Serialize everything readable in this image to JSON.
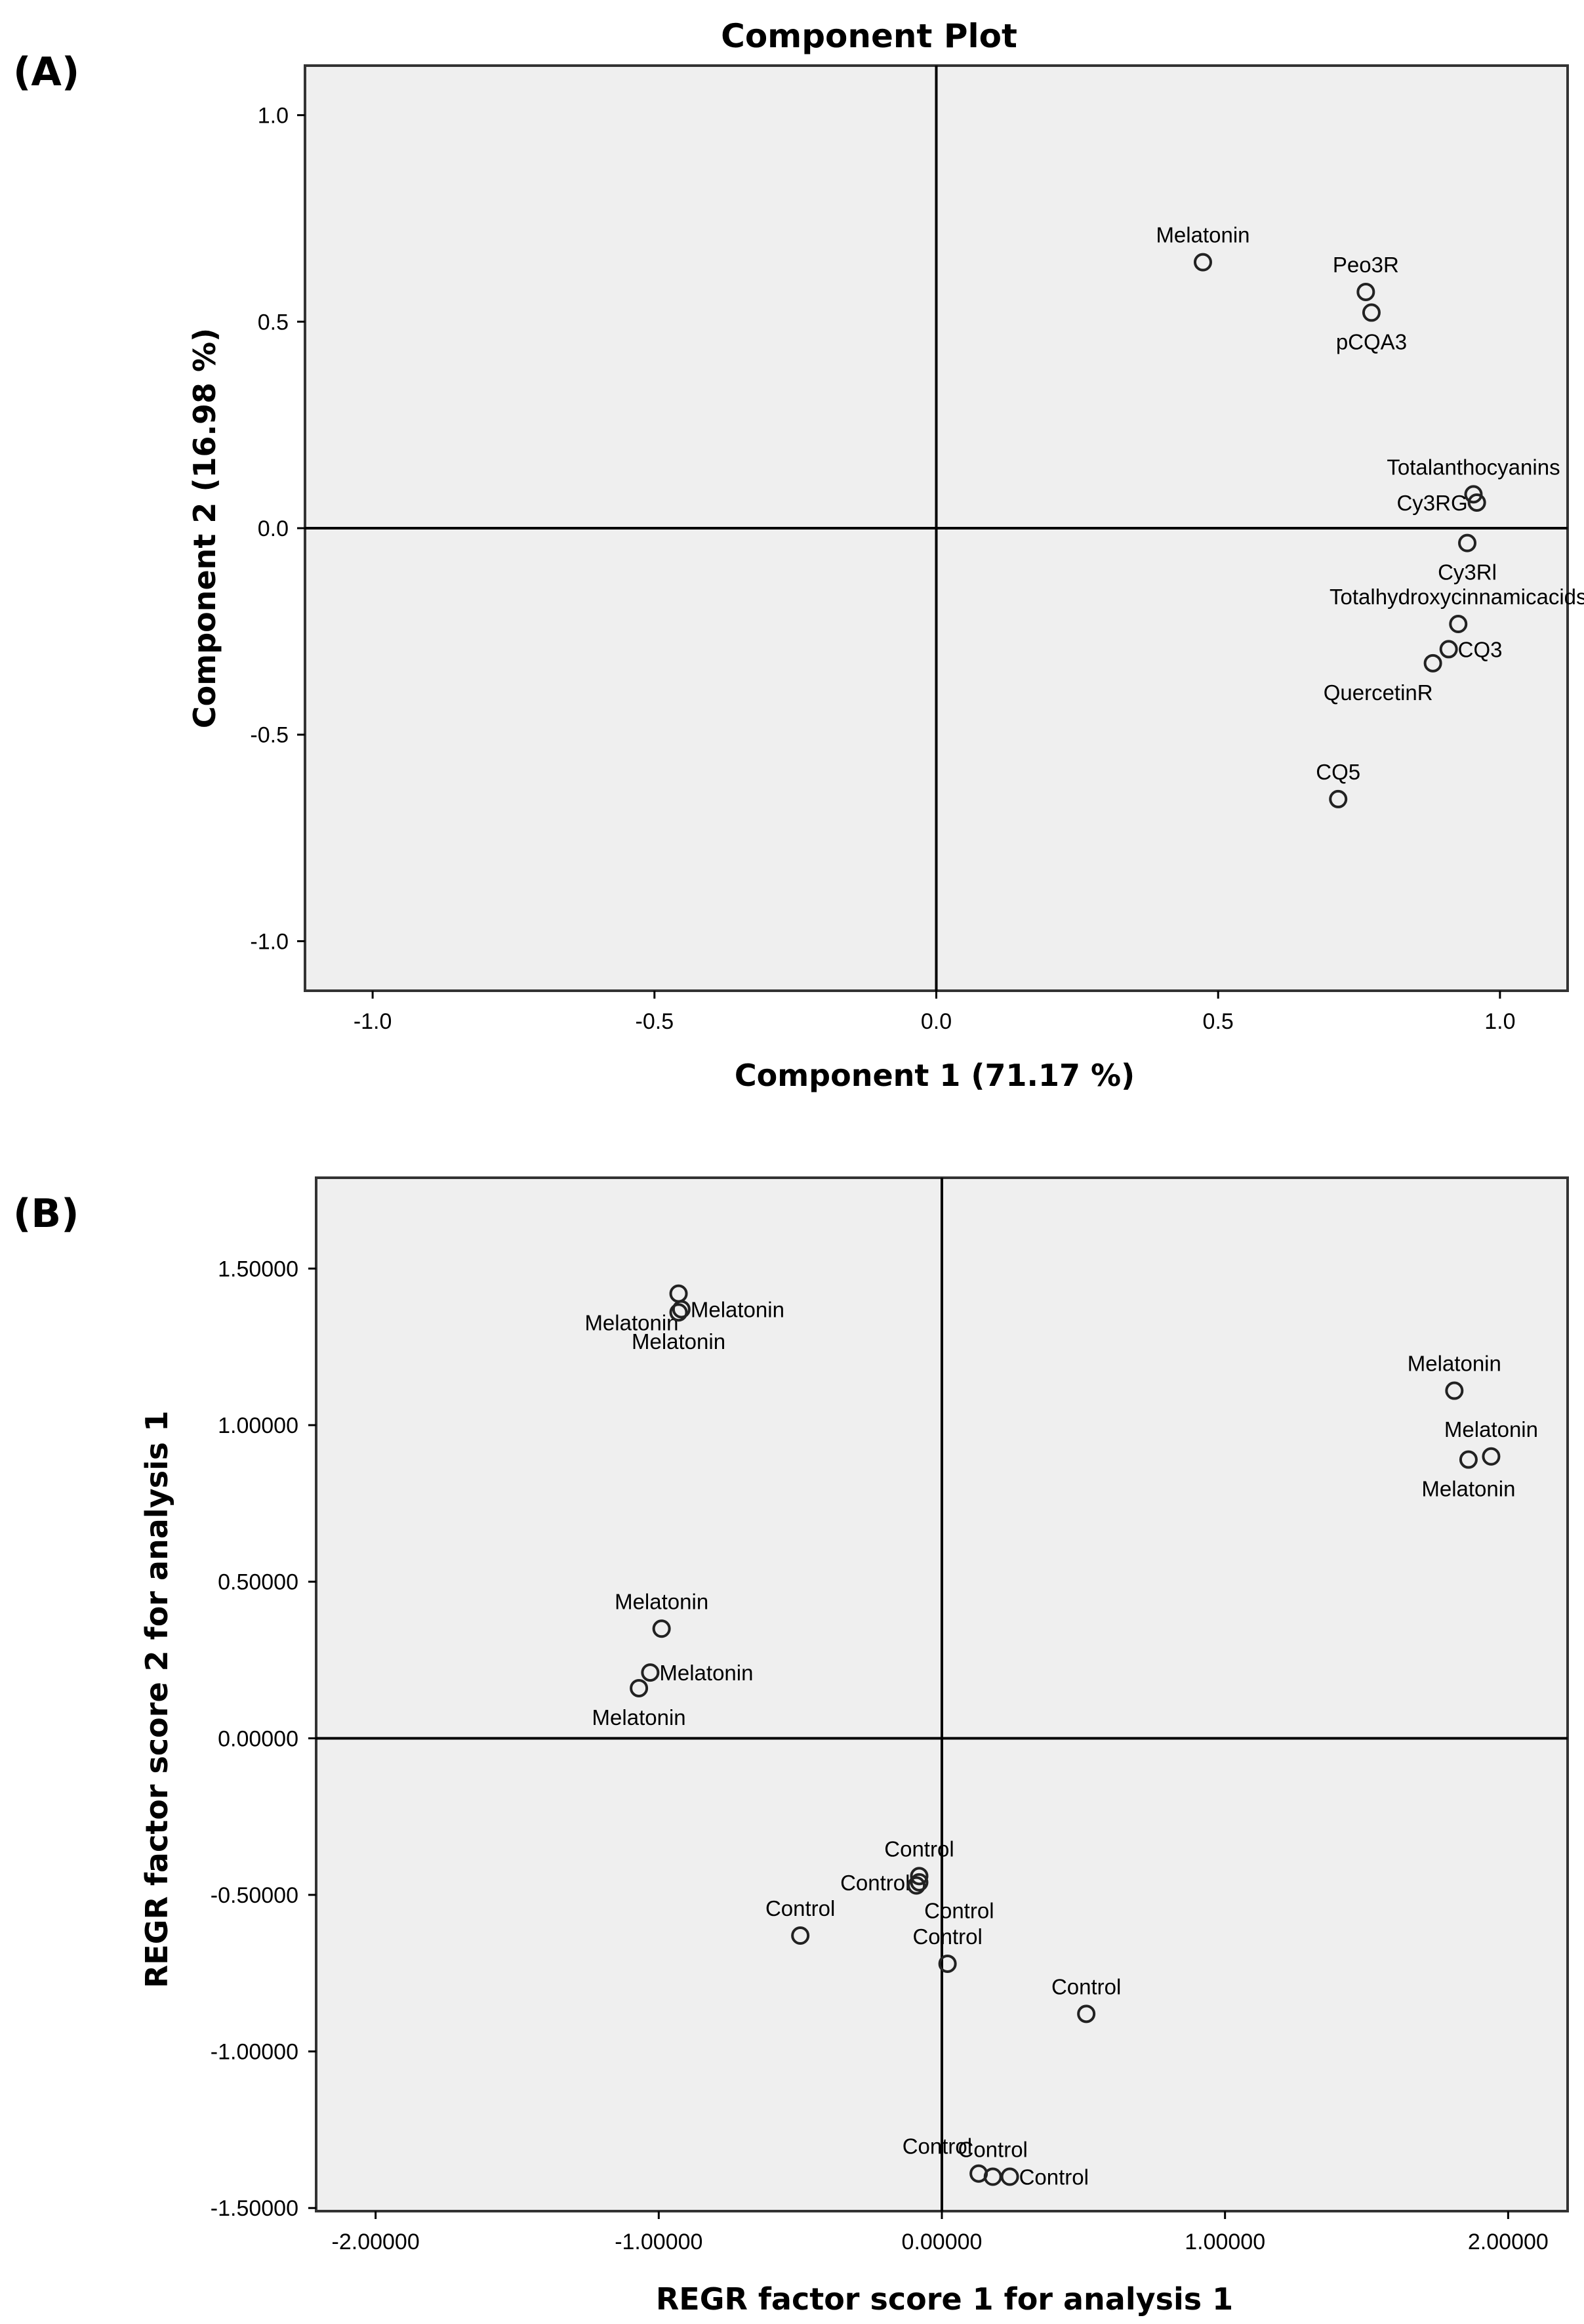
{
  "chart_data": [
    {
      "panel": "(A)",
      "type": "scatter",
      "title": "Component Plot",
      "xlabel": "Component 1 (71.17 %)",
      "ylabel": "Component 2 (16.98 %)",
      "xlim": [
        -1.12,
        1.12
      ],
      "ylim": [
        -1.12,
        1.12
      ],
      "xticks": [
        -1.0,
        -0.5,
        0.0,
        0.5,
        1.0
      ],
      "yticks": [
        -1.0,
        -0.5,
        0.0,
        0.5,
        1.0
      ],
      "xtick_labels": [
        "-1.0",
        "-0.5",
        "0.0",
        "0.5",
        "1.0"
      ],
      "ytick_labels": [
        "-1.0",
        "-0.5",
        "0.0",
        "0.5",
        "1.0"
      ],
      "reference_lines": {
        "x": 0,
        "y": 0
      },
      "grid": false,
      "points": [
        {
          "label": "Melatonin",
          "x": 0.473,
          "y": 0.644,
          "anchor": "above"
        },
        {
          "label": "Peo3R",
          "x": 0.762,
          "y": 0.572,
          "anchor": "above"
        },
        {
          "label": "pCQA3",
          "x": 0.772,
          "y": 0.522,
          "anchor": "below"
        },
        {
          "label": "Totalanthocyanins",
          "x": 0.953,
          "y": 0.082,
          "anchor": "above"
        },
        {
          "label": "Cy3RG",
          "x": 0.959,
          "y": 0.062,
          "anchor": "left"
        },
        {
          "label": "Cy3Rl",
          "x": 0.942,
          "y": -0.036,
          "anchor": "below"
        },
        {
          "label": "Totalhydroxycinnamicacids",
          "x": 0.926,
          "y": -0.232,
          "anchor": "above"
        },
        {
          "label": "CQ3",
          "x": 0.909,
          "y": -0.293,
          "anchor": "right"
        },
        {
          "label": "QuercetinR",
          "x": 0.881,
          "y": -0.327,
          "anchor": "below-left"
        },
        {
          "label": "CQ5",
          "x": 0.713,
          "y": -0.656,
          "anchor": "above"
        }
      ]
    },
    {
      "panel": "(B)",
      "type": "scatter",
      "title": "",
      "xlabel": "REGR factor score   1 for analysis 1",
      "ylabel": "REGR factor score   2 for analysis 1",
      "xlim": [
        -2.21,
        2.21
      ],
      "ylim": [
        -1.51,
        1.79
      ],
      "xticks": [
        -2.0,
        -1.0,
        0.0,
        1.0,
        2.0
      ],
      "yticks": [
        -1.5,
        -1.0,
        -0.5,
        0.0,
        0.5,
        1.0,
        1.5
      ],
      "xtick_labels": [
        "-2.00000",
        "-1.00000",
        "0.00000",
        "1.00000",
        "2.00000"
      ],
      "ytick_labels": [
        "-1.50000",
        "-1.00000",
        "-0.50000",
        "0.00000",
        "0.50000",
        "1.00000",
        "1.50000"
      ],
      "reference_lines": {
        "x": 0,
        "y": 0
      },
      "grid": false,
      "points": [
        {
          "label": "Melatonin",
          "x": -0.93,
          "y": 1.42,
          "anchor": "below-left"
        },
        {
          "label": "Melatonin",
          "x": -0.92,
          "y": 1.37,
          "anchor": "right"
        },
        {
          "label": "Melatonin",
          "x": -0.93,
          "y": 1.36,
          "anchor": "below"
        },
        {
          "label": "Melatonin",
          "x": 1.81,
          "y": 1.11,
          "anchor": "above"
        },
        {
          "label": "Melatonin",
          "x": 1.94,
          "y": 0.9,
          "anchor": "above"
        },
        {
          "label": "Melatonin",
          "x": 1.86,
          "y": 0.89,
          "anchor": "below"
        },
        {
          "label": "Melatonin",
          "x": -0.99,
          "y": 0.35,
          "anchor": "above"
        },
        {
          "label": "Melatonin",
          "x": -1.03,
          "y": 0.21,
          "anchor": "right"
        },
        {
          "label": "Melatonin",
          "x": -1.07,
          "y": 0.16,
          "anchor": "below"
        },
        {
          "label": "Control",
          "x": -0.08,
          "y": -0.44,
          "anchor": "above"
        },
        {
          "label": "Control",
          "x": -0.08,
          "y": -0.46,
          "anchor": "left"
        },
        {
          "label": "Control",
          "x": -0.09,
          "y": -0.47,
          "anchor": "below-right"
        },
        {
          "label": "Control",
          "x": -0.5,
          "y": -0.63,
          "anchor": "above"
        },
        {
          "label": "Control",
          "x": 0.02,
          "y": -0.72,
          "anchor": "above"
        },
        {
          "label": "Control",
          "x": 0.51,
          "y": -0.88,
          "anchor": "above"
        },
        {
          "label": "Control",
          "x": 0.13,
          "y": -1.39,
          "anchor": "above-left"
        },
        {
          "label": "Control",
          "x": 0.18,
          "y": -1.4,
          "anchor": "above"
        },
        {
          "label": "Control",
          "x": 0.24,
          "y": -1.4,
          "anchor": "right"
        }
      ]
    }
  ]
}
